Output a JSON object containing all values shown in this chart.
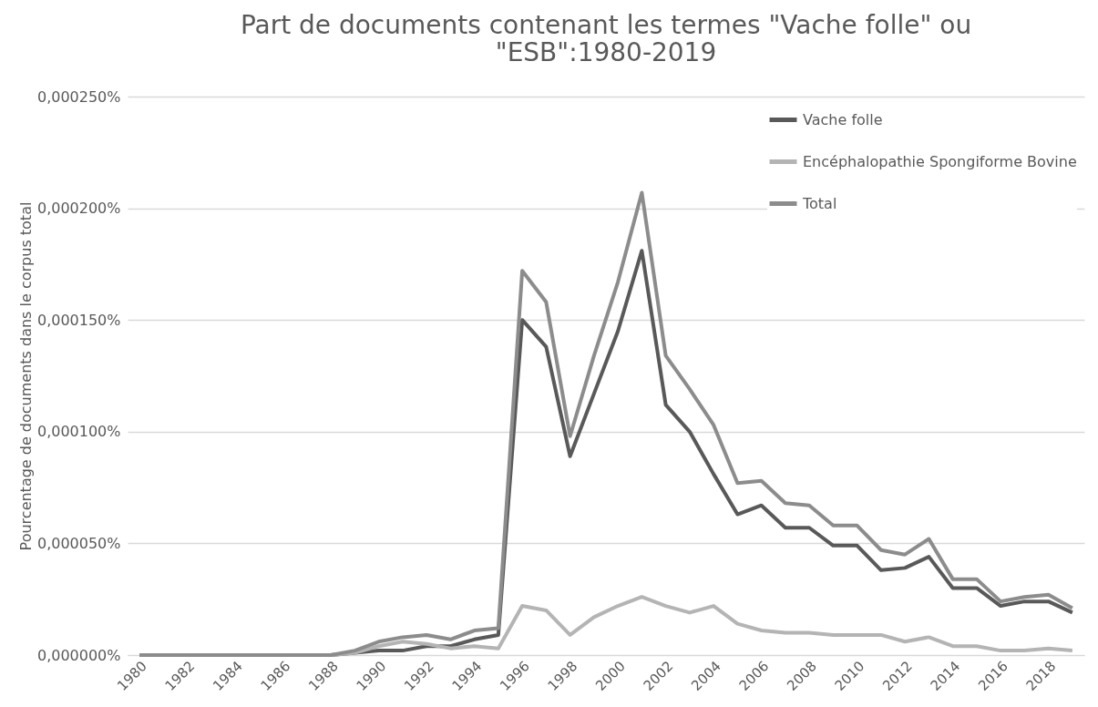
{
  "chart_data": {
    "type": "line",
    "title": [
      "Part de documents contenant les termes \"Vache folle\" ou",
      "\"ESB\":1980-2019"
    ],
    "ylabel": "Pourcentage de documents dans le corpus total",
    "categories": [
      "1980",
      null,
      "1982",
      null,
      "1984",
      null,
      "1986",
      null,
      "1988",
      null,
      "1990",
      null,
      "1992",
      null,
      "1994",
      null,
      "1996",
      null,
      "1998",
      null,
      "2000",
      null,
      "2002",
      null,
      "2004",
      null,
      "2006",
      null,
      "2008",
      null,
      "2010",
      null,
      "2012",
      null,
      "2014",
      null,
      "2016",
      null,
      "2018",
      null
    ],
    "series": [
      {
        "name": "Vache folle",
        "color": "#595959",
        "values": [
          0,
          0,
          0,
          0,
          0,
          0,
          0,
          0,
          0,
          1e-06,
          2e-06,
          2e-06,
          4e-06,
          4e-06,
          7e-06,
          9e-06,
          0.00015,
          0.000138,
          8.9e-05,
          0.000117,
          0.000145,
          0.000181,
          0.000112,
          0.0001,
          8.1e-05,
          6.3e-05,
          6.7e-05,
          5.7e-05,
          5.7e-05,
          4.9e-05,
          4.9e-05,
          3.8e-05,
          3.9e-05,
          4.4e-05,
          3e-05,
          3e-05,
          2.2e-05,
          2.4e-05,
          2.4e-05,
          1.9e-05
        ]
      },
      {
        "name": "Encéphalopathie Spongiforme Bovine",
        "color": "#b4b4b4",
        "values": [
          0,
          0,
          0,
          0,
          0,
          0,
          0,
          0,
          0,
          1e-06,
          4e-06,
          6e-06,
          5e-06,
          3e-06,
          4e-06,
          3e-06,
          2.2e-05,
          2e-05,
          9e-06,
          1.7e-05,
          2.2e-05,
          2.6e-05,
          2.2e-05,
          1.9e-05,
          2.2e-05,
          1.4e-05,
          1.1e-05,
          1e-05,
          1e-05,
          9e-06,
          9e-06,
          9e-06,
          6e-06,
          8e-06,
          4e-06,
          4e-06,
          2e-06,
          2e-06,
          3e-06,
          2e-06
        ]
      },
      {
        "name": "Total",
        "color": "#8c8c8c",
        "values": [
          0,
          0,
          0,
          0,
          0,
          0,
          0,
          0,
          0,
          2e-06,
          6e-06,
          8e-06,
          9e-06,
          7e-06,
          1.1e-05,
          1.2e-05,
          0.000172,
          0.000158,
          9.8e-05,
          0.000134,
          0.000167,
          0.000207,
          0.000134,
          0.000119,
          0.000103,
          7.7e-05,
          7.8e-05,
          6.8e-05,
          6.7e-05,
          5.8e-05,
          5.8e-05,
          4.7e-05,
          4.5e-05,
          5.2e-05,
          3.4e-05,
          3.4e-05,
          2.4e-05,
          2.6e-05,
          2.7e-05,
          2.1e-05
        ]
      }
    ],
    "ylim": [
      0,
      0.00025
    ],
    "yticks": [
      {
        "value": 0,
        "label": "0,000000%"
      },
      {
        "value": 5e-05,
        "label": "0,000050%"
      },
      {
        "value": 0.0001,
        "label": "0,000100%"
      },
      {
        "value": 0.00015,
        "label": "0,000150%"
      },
      {
        "value": 0.0002,
        "label": "0,000200%"
      },
      {
        "value": 0.00025,
        "label": "0,000250%"
      }
    ],
    "grid": "y",
    "legend": "top right",
    "line_style": "solid",
    "marker": "none"
  }
}
